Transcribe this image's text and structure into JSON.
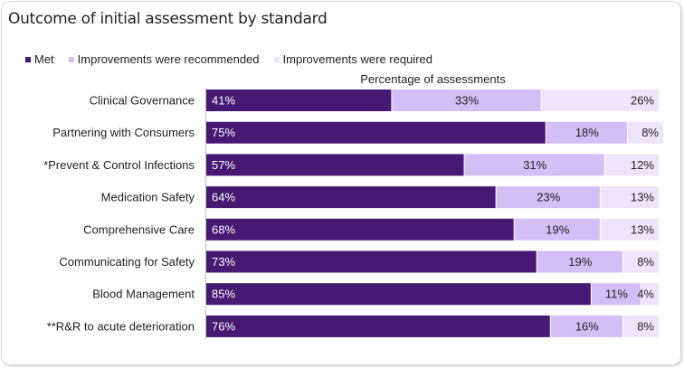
{
  "chart_data": {
    "type": "bar",
    "orientation": "horizontal",
    "stacked": true,
    "title": "Outcome of initial assessment by standard",
    "xlabel": "Percentage of assessments",
    "ylabel": "",
    "xlim": [
      0,
      100
    ],
    "grid": false,
    "legend_position": "top-left",
    "categories": [
      "Clinical Governance",
      "Partnering with Consumers",
      "*Prevent & Control Infections",
      "Medication Safety",
      "Comprehensive Care",
      "Communicating for Safety",
      "Blood Management",
      "**R&R to acute deterioration"
    ],
    "series": [
      {
        "name": "Met",
        "color": "#461a72",
        "values": [
          41,
          75,
          57,
          64,
          68,
          73,
          85,
          76
        ]
      },
      {
        "name": "Improvements were recommended",
        "color": "#d4bef6",
        "values": [
          33,
          18,
          31,
          23,
          19,
          19,
          11,
          16
        ]
      },
      {
        "name": "Improvements were required",
        "color": "#eee4fb",
        "values": [
          26,
          8,
          12,
          13,
          13,
          8,
          4,
          8
        ]
      }
    ]
  }
}
